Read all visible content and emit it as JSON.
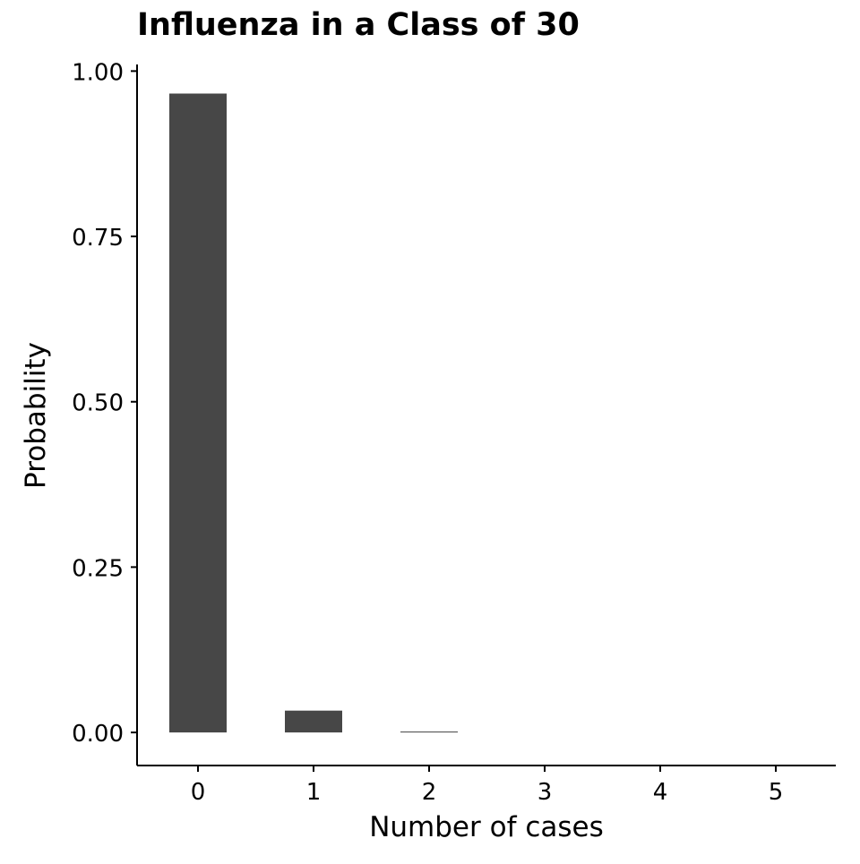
{
  "chart_data": {
    "type": "bar",
    "title": "Influenza in a Class of 30",
    "xlabel": "Number of cases",
    "ylabel": "Probability",
    "categories": [
      "0",
      "1",
      "2",
      "3",
      "4",
      "5"
    ],
    "values": [
      0.966,
      0.033,
      0.0006,
      0.0,
      0.0,
      0.0
    ],
    "ylim": [
      -0.05,
      1.01
    ],
    "yticks": [
      0.0,
      0.25,
      0.5,
      0.75,
      1.0
    ],
    "ytick_labels": [
      "0.00",
      "0.25",
      "0.50",
      "0.75",
      "1.00"
    ],
    "grid": false,
    "legend": "none",
    "bar_color": "#474747"
  }
}
